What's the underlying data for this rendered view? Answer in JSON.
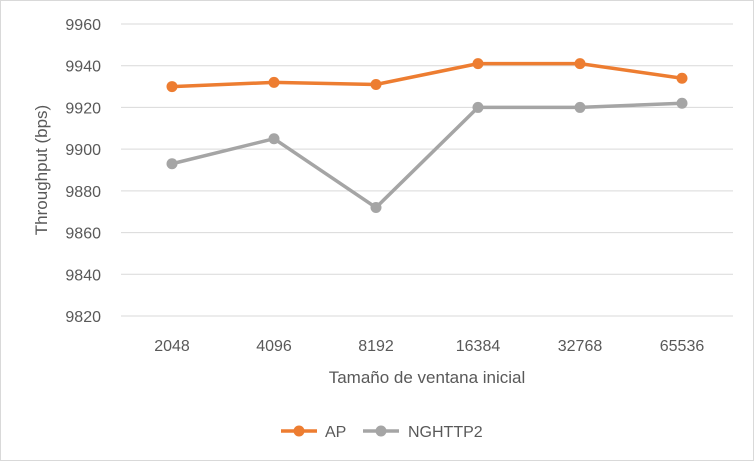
{
  "chart_data": {
    "type": "line",
    "title": "",
    "xlabel": "Tamaño de ventana inicial",
    "ylabel": "Throughput (bps)",
    "categories": [
      "2048",
      "4096",
      "8192",
      "16384",
      "32768",
      "65536"
    ],
    "ylim": [
      9820,
      9960
    ],
    "yticks": [
      9820,
      9840,
      9860,
      9880,
      9900,
      9920,
      9940,
      9960
    ],
    "grid": true,
    "legend_position": "bottom",
    "series": [
      {
        "name": "AP",
        "color": "#ED7D31",
        "values": [
          9930,
          9932,
          9931,
          9941,
          9941,
          9934
        ]
      },
      {
        "name": "NGHTTP2",
        "color": "#A5A5A5",
        "values": [
          9893,
          9905,
          9872,
          9920,
          9920,
          9922
        ]
      }
    ]
  }
}
